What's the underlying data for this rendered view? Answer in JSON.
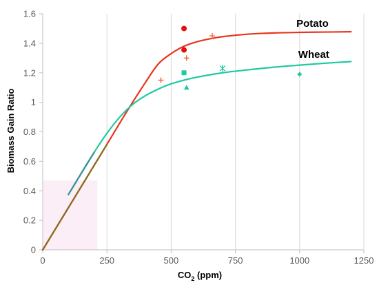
{
  "chart_data": {
    "type": "scatter",
    "xlabel_main": "CO",
    "xlabel_sub": "2",
    "xlabel_unit": " (ppm)",
    "ylabel": "Biomass Gain Ratio",
    "xlim": [
      0,
      1200
    ],
    "ylim": [
      0,
      1.6
    ],
    "x_ticks": [
      0,
      250,
      500,
      750,
      1000,
      1250
    ],
    "y_ticks": [
      0,
      0.2,
      0.4,
      0.6,
      0.8,
      1,
      1.2,
      1.4,
      1.6
    ],
    "x_tick_labels": [
      "0",
      "250",
      "500",
      "750",
      "1000",
      "1250"
    ],
    "y_tick_labels": [
      "0",
      "0.2",
      "0.4",
      "0.6",
      "0.8",
      "1",
      "1.2",
      "1.4",
      "1.6"
    ],
    "grid": "vertical",
    "colors": {
      "potato": "#e8341c",
      "wheat": "#1dc9a0",
      "overlap": "#8a6b1e",
      "marker_red": "#e01010",
      "marker_plus": "#f06a40",
      "axis": "#bfbfbf",
      "grid": "#d9d9d9",
      "pink": "#f8e0ee"
    },
    "series": [
      {
        "name": "Potato",
        "kind": "curve",
        "x": [
          0,
          100,
          200,
          250,
          300,
          350,
          400,
          450,
          500,
          550,
          600,
          650,
          700,
          800,
          900,
          1000,
          1100,
          1200
        ],
        "y": [
          0,
          0.286,
          0.572,
          0.715,
          0.86,
          1.0,
          1.135,
          1.26,
          1.33,
          1.38,
          1.41,
          1.43,
          1.445,
          1.462,
          1.47,
          1.474,
          1.476,
          1.478
        ]
      },
      {
        "name": "Wheat",
        "kind": "curve",
        "x": [
          100,
          150,
          200,
          250,
          300,
          350,
          400,
          450,
          500,
          550,
          600,
          700,
          800,
          900,
          1000,
          1100,
          1200
        ],
        "y": [
          0.375,
          0.52,
          0.66,
          0.79,
          0.9,
          0.985,
          1.045,
          1.09,
          1.125,
          1.15,
          1.17,
          1.2,
          1.22,
          1.238,
          1.252,
          1.265,
          1.276
        ]
      }
    ],
    "markers": [
      {
        "shape": "circle",
        "color_key": "marker_red",
        "x": 550,
        "y": 1.5
      },
      {
        "shape": "circle",
        "color_key": "marker_red",
        "x": 550,
        "y": 1.355
      },
      {
        "shape": "plus",
        "color_key": "marker_plus",
        "x": 660,
        "y": 1.45
      },
      {
        "shape": "plus",
        "color_key": "marker_plus",
        "x": 560,
        "y": 1.3
      },
      {
        "shape": "plus",
        "color_key": "marker_plus",
        "x": 460,
        "y": 1.15
      },
      {
        "shape": "square",
        "color_key": "wheat",
        "x": 550,
        "y": 1.2
      },
      {
        "shape": "triangle",
        "color_key": "wheat",
        "x": 560,
        "y": 1.1
      },
      {
        "shape": "star",
        "color_key": "wheat",
        "x": 700,
        "y": 1.23
      },
      {
        "shape": "diamond",
        "color_key": "wheat",
        "x": 1000,
        "y": 1.19
      }
    ],
    "labels": [
      {
        "text": "Potato",
        "x": 1050,
        "y": 1.535
      },
      {
        "text": "Wheat",
        "x": 1055,
        "y": 1.325
      }
    ]
  }
}
